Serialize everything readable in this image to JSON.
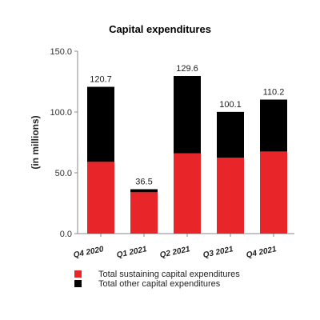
{
  "chart_data": {
    "type": "bar",
    "stacked": true,
    "title": "Capital expenditures",
    "xlabel": "",
    "ylabel": "(in millions)",
    "ylim": [
      0,
      150
    ],
    "yticks": [
      "0.0",
      "50.0",
      "100.0",
      "150.0"
    ],
    "grid": false,
    "legend_placement": "bottom",
    "categories": [
      "Q4 2020",
      "Q1 2021",
      "Q2 2021",
      "Q3 2021",
      "Q4 2021"
    ],
    "totals": [
      "120.7",
      "36.5",
      "129.6",
      "100.1",
      "110.2"
    ],
    "series": [
      {
        "name": "Total sustaining capital expenditures",
        "color": "#e8262a",
        "values": [
          59.0,
          34.0,
          66.0,
          62.5,
          67.5
        ]
      },
      {
        "name": "Total other capital expenditures",
        "color": "#000000",
        "values": [
          61.7,
          2.5,
          63.6,
          37.6,
          42.7
        ]
      }
    ]
  }
}
